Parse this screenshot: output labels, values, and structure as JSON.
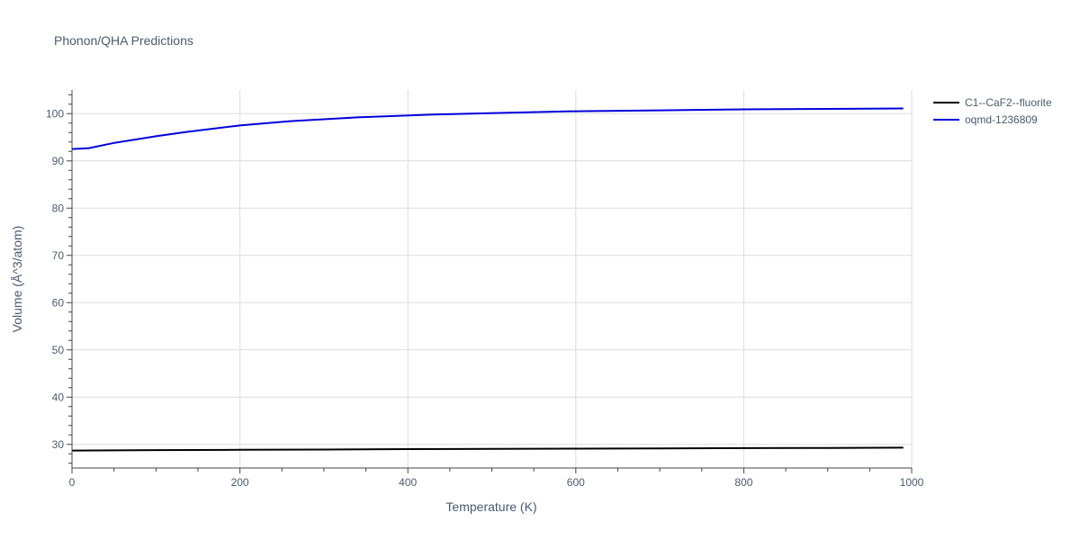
{
  "chart_data": {
    "type": "line",
    "title": "Phonon/QHA Predictions",
    "xlabel": "Temperature (K)",
    "ylabel": "Volume (Å^3/atom)",
    "xlim": [
      0,
      1000
    ],
    "ylim": [
      25,
      105
    ],
    "x_ticks": [
      0,
      200,
      400,
      600,
      800,
      1000
    ],
    "y_ticks": [
      30,
      40,
      50,
      60,
      70,
      80,
      90,
      100
    ],
    "grid": true,
    "legend_position": "top-right, outside plot",
    "series": [
      {
        "name": "C1--CaF2--fluorite",
        "color": "#000000",
        "x": [
          0,
          100,
          200,
          300,
          400,
          500,
          600,
          700,
          800,
          900,
          990
        ],
        "y": [
          28.7,
          28.8,
          28.85,
          28.9,
          29.0,
          29.05,
          29.1,
          29.15,
          29.2,
          29.25,
          29.3
        ]
      },
      {
        "name": "oqmd-1236809",
        "color": "#0000dd",
        "x": [
          0,
          20,
          50,
          100,
          135,
          200,
          260,
          340,
          430,
          520,
          600,
          700,
          800,
          900,
          990
        ],
        "y": [
          92.5,
          92.7,
          93.8,
          95.2,
          96.1,
          97.5,
          98.4,
          99.2,
          99.8,
          100.2,
          100.5,
          100.7,
          100.9,
          101.0,
          101.1
        ]
      }
    ]
  }
}
